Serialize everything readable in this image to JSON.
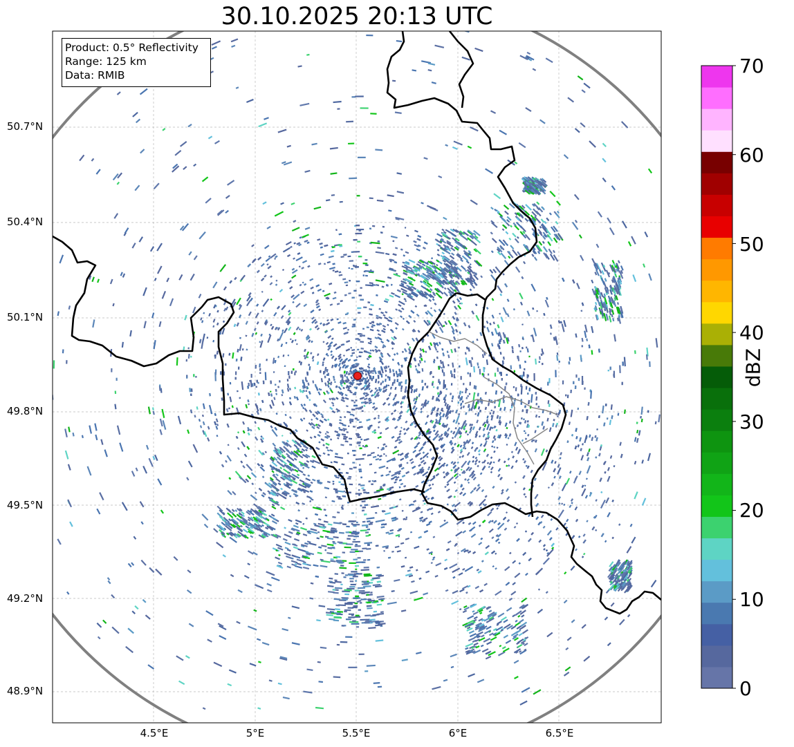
{
  "title": "30.10.2025 20:13 UTC",
  "info": {
    "product": "Product: 0.5° Reflectivity",
    "range": "Range: 125 km",
    "data": "Data: RMIB"
  },
  "lat_ticks": [
    "48.9°N",
    "49.2°N",
    "49.5°N",
    "49.8°N",
    "50.1°N",
    "50.4°N",
    "50.7°N"
  ],
  "lon_ticks": [
    "4.5°E",
    "5°E",
    "5.5°E",
    "6°E",
    "6.5°E"
  ],
  "colorbar": {
    "label": "dBZ",
    "ticks": [
      "0",
      "10",
      "20",
      "30",
      "40",
      "50",
      "60",
      "70"
    ],
    "colors": [
      "#6675a8",
      "#56689e",
      "#4560a4",
      "#4a79b0",
      "#5b9bc6",
      "#63c0dc",
      "#5ed4c4",
      "#3cd26f",
      "#12c519",
      "#12b519",
      "#10a315",
      "#0e9410",
      "#0b7f0e",
      "#09700b",
      "#055c08",
      "#487a08",
      "#aab005",
      "#ffd700",
      "#ffb600",
      "#ff9800",
      "#ff7b00",
      "#e80000",
      "#c80000",
      "#a00000",
      "#780000",
      "#ffe0ff",
      "#ffb4ff",
      "#ff6eff",
      "#ee36ee"
    ]
  },
  "chart_data": {
    "type": "radar_map",
    "title": "30.10.2025 20:13 UTC",
    "product": "0.5° Reflectivity",
    "range_km": 125,
    "source": "RMIB",
    "radar_site": {
      "lon": 5.5,
      "lat": 49.914
    },
    "lon_range": [
      4.0,
      7.0
    ],
    "lat_range": [
      48.8,
      50.98
    ],
    "range_ring": {
      "lon": 5.5,
      "lat": 49.914,
      "radius_km": 125
    },
    "colorbar_range_dbz": [
      0,
      70
    ],
    "grid": true
  }
}
